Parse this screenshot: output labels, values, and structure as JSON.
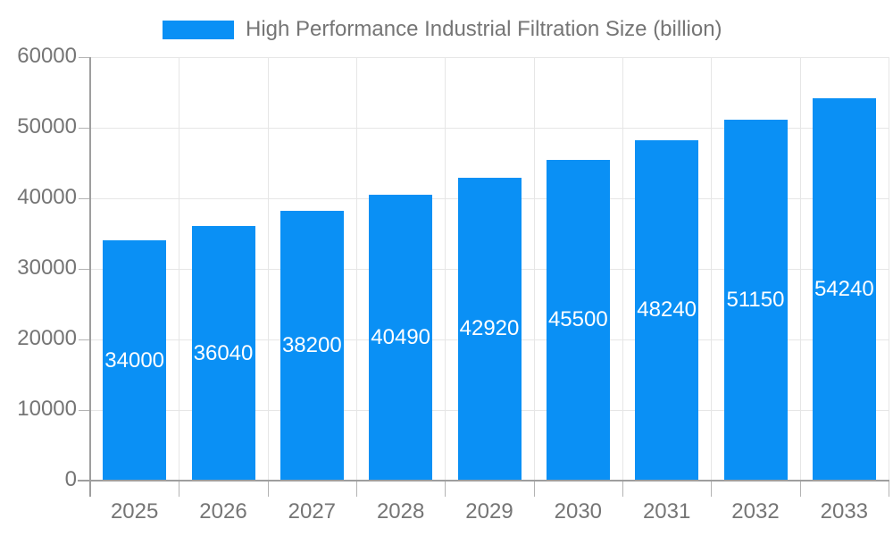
{
  "legend": {
    "label": "High Performance Industrial Filtration Size (billion)"
  },
  "colors": {
    "bar": "#0a90f5",
    "label_text": "#757575",
    "bar_label_text": "#ffffff",
    "axis": "#9e9e9e",
    "gridline": "#e6e6e6",
    "tick": "#b3b3b3",
    "background": "#ffffff"
  },
  "chart_data": {
    "type": "bar",
    "title": "High Performance Industrial Filtration Size (billion)",
    "categories": [
      "2025",
      "2026",
      "2027",
      "2028",
      "2029",
      "2030",
      "2031",
      "2032",
      "2033"
    ],
    "values": [
      34000,
      36040,
      38200,
      40490,
      42920,
      45500,
      48240,
      51150,
      54240
    ],
    "xlabel": "",
    "ylabel": "",
    "ylim": [
      0,
      60000
    ],
    "yticks": [
      0,
      10000,
      20000,
      30000,
      40000,
      50000,
      60000
    ],
    "grid": "on",
    "legend_position": "top",
    "bar_value_labels": "inside-center"
  }
}
